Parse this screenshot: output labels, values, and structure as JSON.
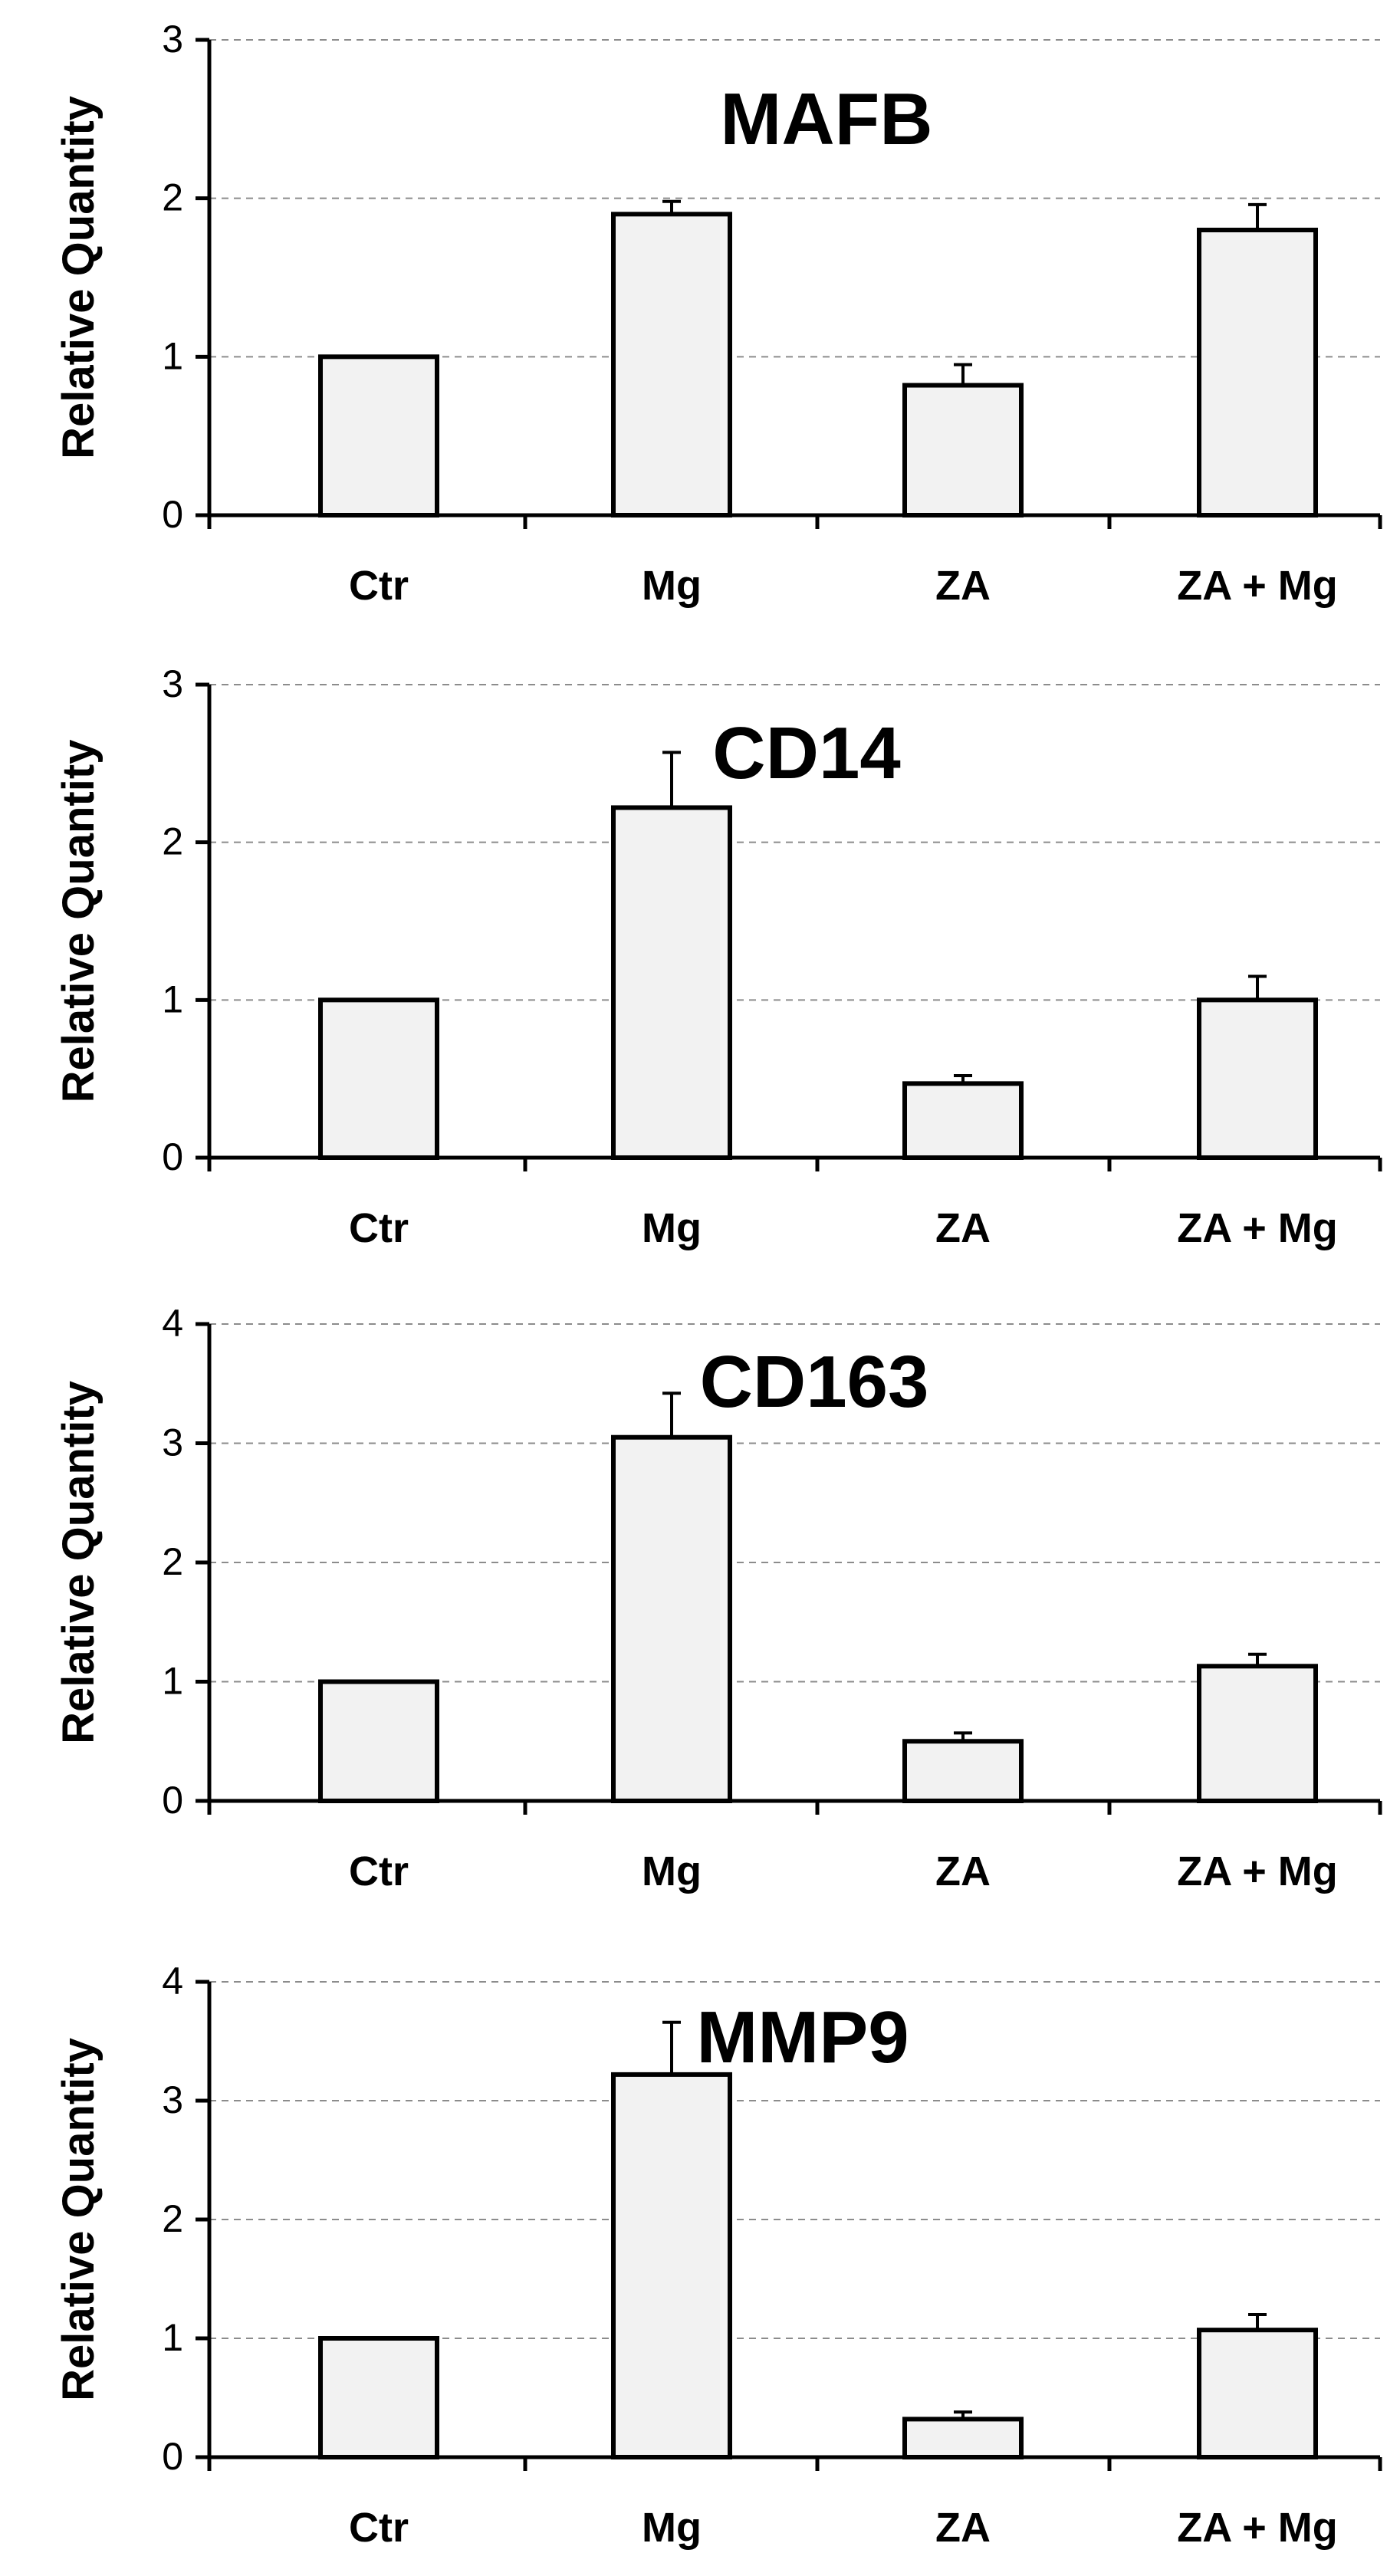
{
  "chart_data": [
    {
      "type": "bar",
      "title": "MAFB",
      "ylabel": "Relative Quantity",
      "xlabel": "",
      "categories": [
        "Ctr",
        "Mg",
        "ZA",
        "ZA + Mg"
      ],
      "values": [
        1.0,
        1.9,
        0.82,
        1.8
      ],
      "errors": [
        0.0,
        0.08,
        0.13,
        0.16
      ],
      "ylim": [
        0,
        3
      ],
      "yticks": [
        0,
        1,
        2,
        3
      ],
      "grid": true
    },
    {
      "type": "bar",
      "title": "CD14",
      "ylabel": "Relative Quantity",
      "xlabel": "",
      "categories": [
        "Ctr",
        "Mg",
        "ZA",
        "ZA + Mg"
      ],
      "values": [
        1.0,
        2.22,
        0.47,
        1.0
      ],
      "errors": [
        0.0,
        0.35,
        0.05,
        0.15
      ],
      "ylim": [
        0,
        3
      ],
      "yticks": [
        0,
        1,
        2,
        3
      ],
      "grid": true
    },
    {
      "type": "bar",
      "title": "CD163",
      "ylabel": "Relative Quantity",
      "xlabel": "",
      "categories": [
        "Ctr",
        "Mg",
        "ZA",
        "ZA + Mg"
      ],
      "values": [
        1.0,
        3.05,
        0.5,
        1.13
      ],
      "errors": [
        0.0,
        0.37,
        0.07,
        0.1
      ],
      "ylim": [
        0,
        4
      ],
      "yticks": [
        0,
        1,
        2,
        3,
        4
      ],
      "grid": true
    },
    {
      "type": "bar",
      "title": "MMP9",
      "ylabel": "Relative Quantity",
      "xlabel": "",
      "categories": [
        "Ctr",
        "Mg",
        "ZA",
        "ZA + Mg"
      ],
      "values": [
        1.0,
        3.22,
        0.32,
        1.07
      ],
      "errors": [
        0.0,
        0.44,
        0.06,
        0.13
      ],
      "ylim": [
        0,
        4
      ],
      "yticks": [
        0,
        1,
        2,
        3,
        4
      ],
      "grid": true
    }
  ],
  "colors": {
    "bar_fill": "#f2f2f2",
    "bar_stroke": "#000000",
    "gridline": "#8c8c8c",
    "axis": "#000000",
    "background": "#ffffff"
  }
}
